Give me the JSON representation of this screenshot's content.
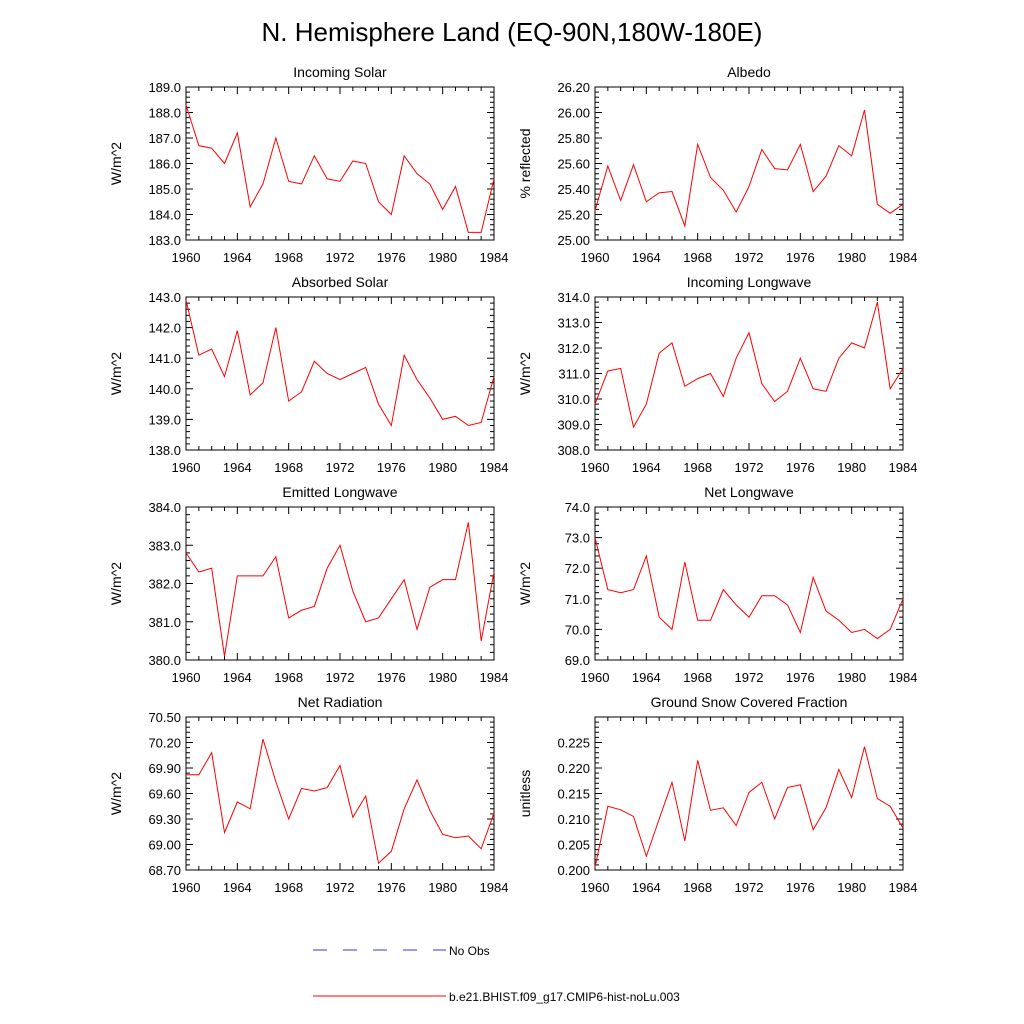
{
  "title": "N. Hemisphere Land (EQ-90N,180W-180E)",
  "colors": {
    "model_line": "#ff0000",
    "obs_line": "#3a3acc",
    "axis": "#000000"
  },
  "legend": {
    "placement": "bottom-center",
    "items": [
      {
        "label": "No Obs",
        "style": "dashed",
        "color": "#3a3acc"
      },
      {
        "label": "b.e21.BHIST.f09_g17.CMIP6-hist-noLu.003",
        "style": "solid",
        "color": "#ff0000"
      }
    ]
  },
  "chart_data": [
    {
      "type": "line",
      "title": "Incoming Solar",
      "ylabel": "W/m^2",
      "xlim": [
        1960,
        1984
      ],
      "ylim": [
        183.0,
        189.0
      ],
      "xticks": [
        "1960",
        "1964",
        "1968",
        "1972",
        "1976",
        "1980",
        "1984"
      ],
      "yticks": [
        "183.0",
        "184.0",
        "185.0",
        "186.0",
        "187.0",
        "188.0",
        "189.0"
      ],
      "x": [
        1960,
        1961,
        1962,
        1963,
        1964,
        1965,
        1966,
        1967,
        1968,
        1969,
        1970,
        1971,
        1972,
        1973,
        1974,
        1975,
        1976,
        1977,
        1978,
        1979,
        1980,
        1981,
        1982,
        1983,
        1984
      ],
      "series": [
        {
          "name": "b.e21.BHIST.f09_g17.CMIP6-hist-noLu.003",
          "values": [
            188.3,
            186.7,
            186.6,
            186.0,
            187.2,
            184.3,
            185.2,
            187.0,
            185.3,
            185.2,
            186.3,
            185.4,
            185.3,
            186.1,
            186.0,
            184.5,
            184.0,
            186.3,
            185.6,
            185.2,
            184.2,
            185.1,
            183.3,
            183.3,
            185.4
          ]
        }
      ]
    },
    {
      "type": "line",
      "title": "Albedo",
      "ylabel": "% reflected",
      "xlim": [
        1960,
        1984
      ],
      "ylim": [
        25.0,
        26.2
      ],
      "xticks": [
        "1960",
        "1964",
        "1968",
        "1972",
        "1976",
        "1980",
        "1984"
      ],
      "yticks": [
        "25.00",
        "25.20",
        "25.40",
        "25.60",
        "25.80",
        "26.00",
        "26.20"
      ],
      "x": [
        1960,
        1961,
        1962,
        1963,
        1964,
        1965,
        1966,
        1967,
        1968,
        1969,
        1970,
        1971,
        1972,
        1973,
        1974,
        1975,
        1976,
        1977,
        1978,
        1979,
        1980,
        1981,
        1982,
        1983,
        1984
      ],
      "series": [
        {
          "name": "b.e21.BHIST.f09_g17.CMIP6-hist-noLu.003",
          "values": [
            25.23,
            25.58,
            25.31,
            25.59,
            25.3,
            25.37,
            25.38,
            25.11,
            25.75,
            25.49,
            25.39,
            25.22,
            25.42,
            25.71,
            25.56,
            25.55,
            25.75,
            25.38,
            25.5,
            25.74,
            25.66,
            26.02,
            25.28,
            25.21,
            25.28
          ]
        }
      ]
    },
    {
      "type": "line",
      "title": "Absorbed Solar",
      "ylabel": "W/m^2",
      "xlim": [
        1960,
        1984
      ],
      "ylim": [
        138.0,
        143.0
      ],
      "xticks": [
        "1960",
        "1964",
        "1968",
        "1972",
        "1976",
        "1980",
        "1984"
      ],
      "yticks": [
        "138.0",
        "139.0",
        "140.0",
        "141.0",
        "142.0",
        "143.0"
      ],
      "x": [
        1960,
        1961,
        1962,
        1963,
        1964,
        1965,
        1966,
        1967,
        1968,
        1969,
        1970,
        1971,
        1972,
        1973,
        1974,
        1975,
        1976,
        1977,
        1978,
        1979,
        1980,
        1981,
        1982,
        1983,
        1984
      ],
      "series": [
        {
          "name": "b.e21.BHIST.f09_g17.CMIP6-hist-noLu.003",
          "values": [
            142.9,
            141.1,
            141.3,
            140.4,
            141.9,
            139.8,
            140.2,
            142.0,
            139.6,
            139.9,
            140.9,
            140.5,
            140.3,
            140.5,
            140.7,
            139.5,
            138.8,
            141.1,
            140.3,
            139.7,
            139.0,
            139.1,
            138.8,
            138.9,
            140.4
          ]
        }
      ]
    },
    {
      "type": "line",
      "title": "Incoming Longwave",
      "ylabel": "W/m^2",
      "xlim": [
        1960,
        1984
      ],
      "ylim": [
        308.0,
        314.0
      ],
      "xticks": [
        "1960",
        "1964",
        "1968",
        "1972",
        "1976",
        "1980",
        "1984"
      ],
      "yticks": [
        "308.0",
        "309.0",
        "310.0",
        "311.0",
        "312.0",
        "313.0",
        "314.0"
      ],
      "x": [
        1960,
        1961,
        1962,
        1963,
        1964,
        1965,
        1966,
        1967,
        1968,
        1969,
        1970,
        1971,
        1972,
        1973,
        1974,
        1975,
        1976,
        1977,
        1978,
        1979,
        1980,
        1981,
        1982,
        1983,
        1984
      ],
      "series": [
        {
          "name": "b.e21.BHIST.f09_g17.CMIP6-hist-noLu.003",
          "values": [
            309.8,
            311.1,
            311.2,
            308.9,
            309.8,
            311.8,
            312.2,
            310.5,
            310.8,
            311.0,
            310.1,
            311.6,
            312.6,
            310.6,
            309.9,
            310.3,
            311.6,
            310.4,
            310.3,
            311.6,
            312.2,
            312.0,
            313.8,
            310.4,
            311.2
          ]
        }
      ]
    },
    {
      "type": "line",
      "title": "Emitted Longwave",
      "ylabel": "W/m^2",
      "xlim": [
        1960,
        1984
      ],
      "ylim": [
        380.0,
        384.0
      ],
      "xticks": [
        "1960",
        "1964",
        "1968",
        "1972",
        "1976",
        "1980",
        "1984"
      ],
      "yticks": [
        "380.0",
        "381.0",
        "382.0",
        "383.0",
        "384.0"
      ],
      "x": [
        1960,
        1961,
        1962,
        1963,
        1964,
        1965,
        1966,
        1967,
        1968,
        1969,
        1970,
        1971,
        1972,
        1973,
        1974,
        1975,
        1976,
        1977,
        1978,
        1979,
        1980,
        1981,
        1982,
        1983,
        1984
      ],
      "series": [
        {
          "name": "b.e21.BHIST.f09_g17.CMIP6-hist-noLu.003",
          "values": [
            382.8,
            382.3,
            382.4,
            380.1,
            382.2,
            382.2,
            382.2,
            382.7,
            381.1,
            381.3,
            381.4,
            382.4,
            383.0,
            381.8,
            381.0,
            381.1,
            381.6,
            382.1,
            380.8,
            381.9,
            382.1,
            382.1,
            383.6,
            380.5,
            382.3
          ]
        }
      ]
    },
    {
      "type": "line",
      "title": "Net Longwave",
      "ylabel": "W/m^2",
      "xlim": [
        1960,
        1984
      ],
      "ylim": [
        69.0,
        74.0
      ],
      "xticks": [
        "1960",
        "1964",
        "1968",
        "1972",
        "1976",
        "1980",
        "1984"
      ],
      "yticks": [
        "69.0",
        "70.0",
        "71.0",
        "72.0",
        "73.0",
        "74.0"
      ],
      "x": [
        1960,
        1961,
        1962,
        1963,
        1964,
        1965,
        1966,
        1967,
        1968,
        1969,
        1970,
        1971,
        1972,
        1973,
        1974,
        1975,
        1976,
        1977,
        1978,
        1979,
        1980,
        1981,
        1982,
        1983,
        1984
      ],
      "series": [
        {
          "name": "b.e21.BHIST.f09_g17.CMIP6-hist-noLu.003",
          "values": [
            73.0,
            71.3,
            71.2,
            71.3,
            72.4,
            70.4,
            70.0,
            72.2,
            70.3,
            70.3,
            71.3,
            70.8,
            70.4,
            71.1,
            71.1,
            70.8,
            69.9,
            71.7,
            70.6,
            70.3,
            69.9,
            70.0,
            69.7,
            70.0,
            71.0
          ]
        }
      ]
    },
    {
      "type": "line",
      "title": "Net Radiation",
      "ylabel": "W/m^2",
      "xlim": [
        1960,
        1984
      ],
      "ylim": [
        68.7,
        70.5
      ],
      "xticks": [
        "1960",
        "1964",
        "1968",
        "1972",
        "1976",
        "1980",
        "1984"
      ],
      "yticks": [
        "68.70",
        "69.00",
        "69.30",
        "69.60",
        "69.90",
        "70.20",
        "70.50"
      ],
      "x": [
        1960,
        1961,
        1962,
        1963,
        1964,
        1965,
        1966,
        1967,
        1968,
        1969,
        1970,
        1971,
        1972,
        1973,
        1974,
        1975,
        1976,
        1977,
        1978,
        1979,
        1980,
        1981,
        1982,
        1983,
        1984
      ],
      "series": [
        {
          "name": "b.e21.BHIST.f09_g17.CMIP6-hist-noLu.003",
          "values": [
            69.82,
            69.82,
            70.08,
            69.14,
            69.5,
            69.42,
            70.24,
            69.74,
            69.3,
            69.66,
            69.63,
            69.67,
            69.93,
            69.32,
            69.57,
            68.78,
            68.92,
            69.42,
            69.76,
            69.4,
            69.12,
            69.08,
            69.1,
            68.95,
            69.37
          ]
        }
      ]
    },
    {
      "type": "line",
      "title": "Ground Snow Covered Fraction",
      "ylabel": "unitless",
      "xlim": [
        1960,
        1984
      ],
      "ylim": [
        0.2,
        0.23
      ],
      "xticks": [
        "1960",
        "1964",
        "1968",
        "1972",
        "1976",
        "1980",
        "1984"
      ],
      "yticks": [
        "0.200",
        "0.205",
        "0.210",
        "0.215",
        "0.220",
        "0.225"
      ],
      "x": [
        1960,
        1961,
        1962,
        1963,
        1964,
        1965,
        1966,
        1967,
        1968,
        1969,
        1970,
        1971,
        1972,
        1973,
        1974,
        1975,
        1976,
        1977,
        1978,
        1979,
        1980,
        1981,
        1982,
        1983,
        1984
      ],
      "series": [
        {
          "name": "b.e21.BHIST.f09_g17.CMIP6-hist-noLu.003",
          "values": [
            0.2005,
            0.2125,
            0.2118,
            0.2105,
            0.2027,
            0.21,
            0.2172,
            0.2057,
            0.2215,
            0.2117,
            0.2122,
            0.2087,
            0.2152,
            0.2172,
            0.21,
            0.2162,
            0.2167,
            0.2079,
            0.2122,
            0.2197,
            0.2142,
            0.2242,
            0.214,
            0.2125,
            0.2082
          ]
        }
      ]
    }
  ]
}
